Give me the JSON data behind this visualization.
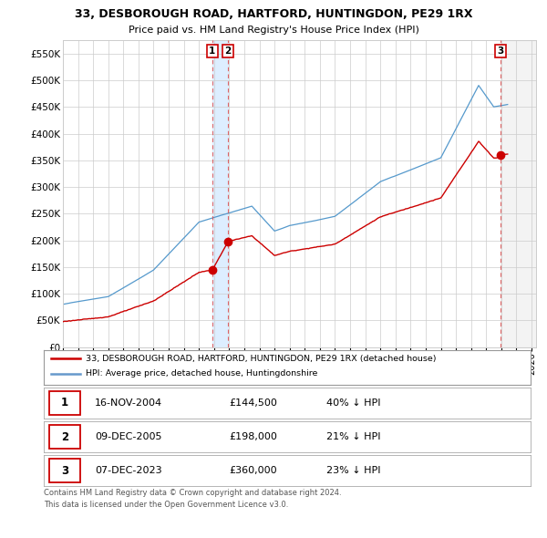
{
  "title": "33, DESBOROUGH ROAD, HARTFORD, HUNTINGDON, PE29 1RX",
  "subtitle": "Price paid vs. HM Land Registry's House Price Index (HPI)",
  "ylim": [
    0,
    575000
  ],
  "yticks": [
    0,
    50000,
    100000,
    150000,
    200000,
    250000,
    300000,
    350000,
    400000,
    450000,
    500000,
    550000
  ],
  "ytick_labels": [
    "£0",
    "£50K",
    "£100K",
    "£150K",
    "£200K",
    "£250K",
    "£300K",
    "£350K",
    "£400K",
    "£450K",
    "£500K",
    "£550K"
  ],
  "xlim_start": 1995.0,
  "xlim_end": 2026.3,
  "sales": [
    {
      "date": 2004.88,
      "price": 144500,
      "label": "1"
    },
    {
      "date": 2005.93,
      "price": 198000,
      "label": "2"
    },
    {
      "date": 2023.93,
      "price": 360000,
      "label": "3"
    }
  ],
  "legend_items": [
    {
      "label": "33, DESBOROUGH ROAD, HARTFORD, HUNTINGDON, PE29 1RX (detached house)",
      "color": "#cc0000"
    },
    {
      "label": "HPI: Average price, detached house, Huntingdonshire",
      "color": "#6699cc"
    }
  ],
  "table_rows": [
    {
      "num": "1",
      "date": "16-NOV-2004",
      "price": "£144,500",
      "pct": "40%",
      "arrow": "↓",
      "hpi": "HPI"
    },
    {
      "num": "2",
      "date": "09-DEC-2005",
      "price": "£198,000",
      "pct": "21%",
      "arrow": "↓",
      "hpi": "HPI"
    },
    {
      "num": "3",
      "date": "07-DEC-2023",
      "price": "£360,000",
      "pct": "23%",
      "arrow": "↓",
      "hpi": "HPI"
    }
  ],
  "footer": "Contains HM Land Registry data © Crown copyright and database right 2024.\nThis data is licensed under the Open Government Licence v3.0.",
  "line_color_red": "#cc0000",
  "line_color_blue": "#5599cc",
  "shade_color_blue": "#ddeeff",
  "shade_color_gray": "#e8e8e8",
  "bg_color": "#ffffff",
  "grid_color": "#cccccc",
  "vline_color": "#dd4444"
}
